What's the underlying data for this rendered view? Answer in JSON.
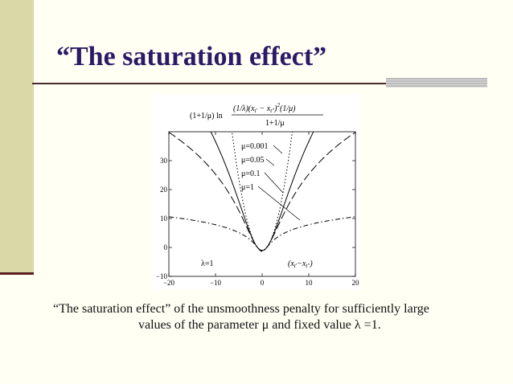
{
  "slide": {
    "title": "“The saturation effect”",
    "caption_line1": "“The saturation effect” of the unsmoothness penalty for sufficiently large",
    "caption_line2": "values of the parameter μ and fixed value λ =1.",
    "colors": {
      "background": "#fffff4",
      "left_bar": "#d9d8a6",
      "title": "#2b1a66",
      "rule": "#4a2a2a"
    }
  },
  "chart_data": {
    "type": "line",
    "formula": {
      "prefix": "(1+1/μ) ln",
      "numerator": "(1/λ)(x",
      "numerator_sub1": "t'",
      "numerator_mid": " − x",
      "numerator_sub2": "t''",
      "numerator_end": ")",
      "numerator_exp": "2",
      "numerator_tail": "(1/μ)",
      "denominator": "1+1/μ"
    },
    "xlim": [
      -20,
      20
    ],
    "ylim": [
      -10,
      40
    ],
    "x_ticks": [
      "−20",
      "−10",
      "0",
      "10",
      "20"
    ],
    "y_ticks": [
      "−10",
      "0",
      "10",
      "20",
      "30"
    ],
    "x_tick_values": [
      -20,
      -10,
      0,
      10,
      20
    ],
    "y_tick_values": [
      -10,
      0,
      10,
      20,
      30
    ],
    "lambda_label": "λ=1",
    "x_annotation": "(x",
    "x_annotation_sub1": "t'",
    "x_annotation_mid": "−x",
    "x_annotation_sub2": "t''",
    "x_annotation_end": ")",
    "lambda": 1,
    "series": [
      {
        "name": "μ=0.001",
        "mu": 0.001,
        "dash": "1.5,2.5"
      },
      {
        "name": "μ=0.05",
        "mu": 0.05,
        "dash": ""
      },
      {
        "name": "μ=0.1",
        "mu": 0.1,
        "dash": "10,4"
      },
      {
        "name": "μ=1",
        "mu": 1,
        "dash": "6,3,1.5,3"
      }
    ]
  }
}
